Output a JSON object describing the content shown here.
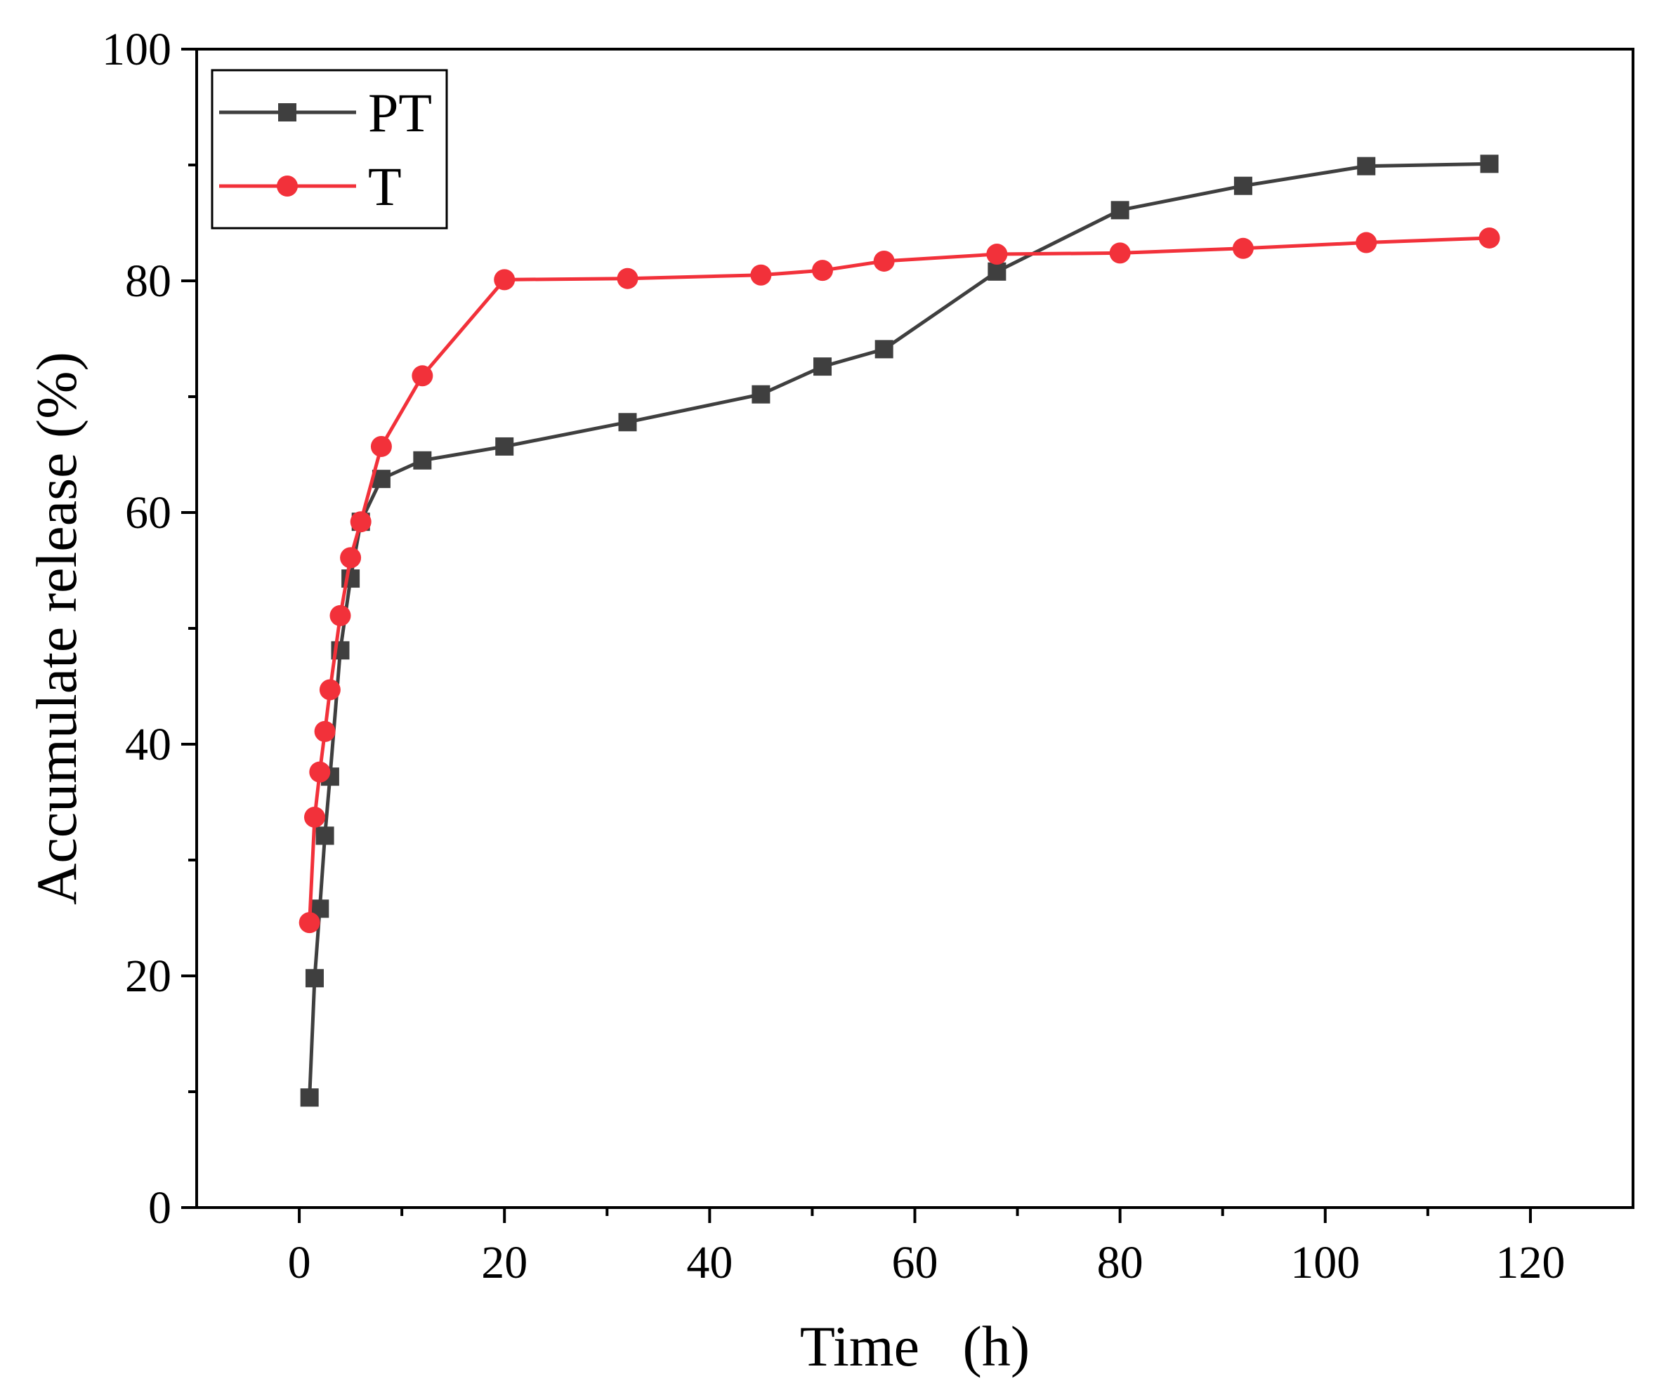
{
  "chart_data": {
    "type": "line",
    "title": "",
    "xlabel": "Time   (h)",
    "ylabel": "Accumulate release (%)",
    "xlim": [
      -10,
      130
    ],
    "ylim": [
      0,
      100
    ],
    "xticks": [
      0,
      20,
      40,
      60,
      80,
      100,
      120
    ],
    "yticks": [
      0,
      20,
      40,
      60,
      80,
      100
    ],
    "xtick_labels": [
      "0",
      "20",
      "40",
      "60",
      "80",
      "100",
      "120"
    ],
    "ytick_labels": [
      "0",
      "20",
      "40",
      "60",
      "80",
      "100"
    ],
    "grid": false,
    "legend_position": "top-left",
    "series": [
      {
        "name": "PT",
        "color": "#3f3f3f",
        "marker": "square",
        "x": [
          1,
          1.5,
          2,
          2.5,
          3,
          4,
          5,
          6,
          8,
          12,
          20,
          32,
          45,
          51,
          57,
          68,
          80,
          92,
          104,
          116
        ],
        "y": [
          9.5,
          19.8,
          25.8,
          32.1,
          37.2,
          48.1,
          54.3,
          59.2,
          62.9,
          64.5,
          65.7,
          67.8,
          70.2,
          72.6,
          74.1,
          80.8,
          86.1,
          88.2,
          89.9,
          90.1
        ]
      },
      {
        "name": "T",
        "color": "#f2313a",
        "marker": "circle",
        "x": [
          1,
          1.5,
          2,
          2.5,
          3,
          4,
          5,
          6,
          8,
          12,
          20,
          32,
          45,
          51,
          57,
          68,
          80,
          92,
          104,
          116
        ],
        "y": [
          24.6,
          33.7,
          37.6,
          41.1,
          44.7,
          51.1,
          56.1,
          59.2,
          65.7,
          71.8,
          80.1,
          80.2,
          80.5,
          80.9,
          81.7,
          82.3,
          82.4,
          82.8,
          83.3,
          83.7
        ]
      }
    ]
  }
}
